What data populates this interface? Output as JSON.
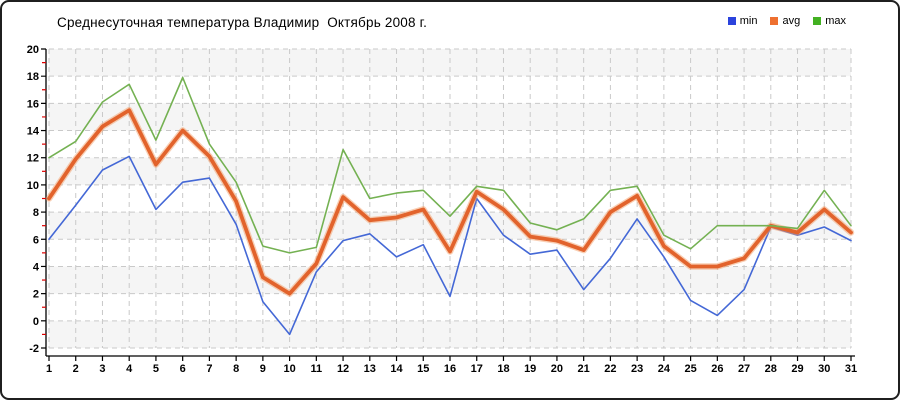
{
  "chart_data": {
    "type": "line",
    "title": "Среднесуточная температура Владимир  Октябрь 2008 г.",
    "xlabel": "",
    "ylabel": "",
    "x": [
      1,
      2,
      3,
      4,
      5,
      6,
      7,
      8,
      9,
      10,
      11,
      12,
      13,
      14,
      15,
      16,
      17,
      18,
      19,
      20,
      21,
      22,
      23,
      24,
      25,
      26,
      27,
      28,
      29,
      30,
      31
    ],
    "ylim": [
      -2,
      20
    ],
    "ytick_step": 2,
    "minor_tick_step": 1,
    "grid": true,
    "grid_style": "dashed",
    "legend_position": "top-right",
    "series": [
      {
        "name": "min",
        "color": "#4468d6",
        "swatch": "#2b43dd",
        "values": [
          6.0,
          8.5,
          11.1,
          12.1,
          8.2,
          10.2,
          10.5,
          7.1,
          1.4,
          -1.0,
          3.6,
          5.9,
          6.4,
          4.7,
          5.6,
          1.8,
          9.0,
          6.3,
          4.9,
          5.2,
          2.3,
          4.6,
          7.5,
          4.7,
          1.5,
          0.4,
          2.3,
          6.9,
          6.3,
          6.9,
          5.9
        ]
      },
      {
        "name": "avg",
        "color": "#e2632c",
        "swatch": "#ee7030",
        "values": [
          9.0,
          11.9,
          14.3,
          15.5,
          11.5,
          14.0,
          12.1,
          8.8,
          3.2,
          2.0,
          4.2,
          9.1,
          7.4,
          7.6,
          8.2,
          5.1,
          9.5,
          8.2,
          6.2,
          5.9,
          5.2,
          8.0,
          9.2,
          5.5,
          4.0,
          4.0,
          4.6,
          7.0,
          6.5,
          8.2,
          6.5
        ]
      },
      {
        "name": "max",
        "color": "#74b152",
        "swatch": "#43b122",
        "values": [
          12.0,
          13.2,
          16.1,
          17.4,
          13.3,
          17.9,
          13.0,
          10.2,
          5.5,
          5.0,
          5.4,
          12.6,
          9.0,
          9.4,
          9.6,
          7.7,
          9.9,
          9.6,
          7.2,
          6.7,
          7.5,
          9.6,
          9.9,
          6.3,
          5.3,
          7.0,
          7.0,
          7.0,
          6.8,
          9.6,
          7.0
        ]
      }
    ],
    "colors": {
      "band": "#f5f5f5",
      "grid": "#c9c9c9",
      "axis": "#000000",
      "minor_tick": "#dd0000",
      "tick_label": "#000000"
    }
  }
}
